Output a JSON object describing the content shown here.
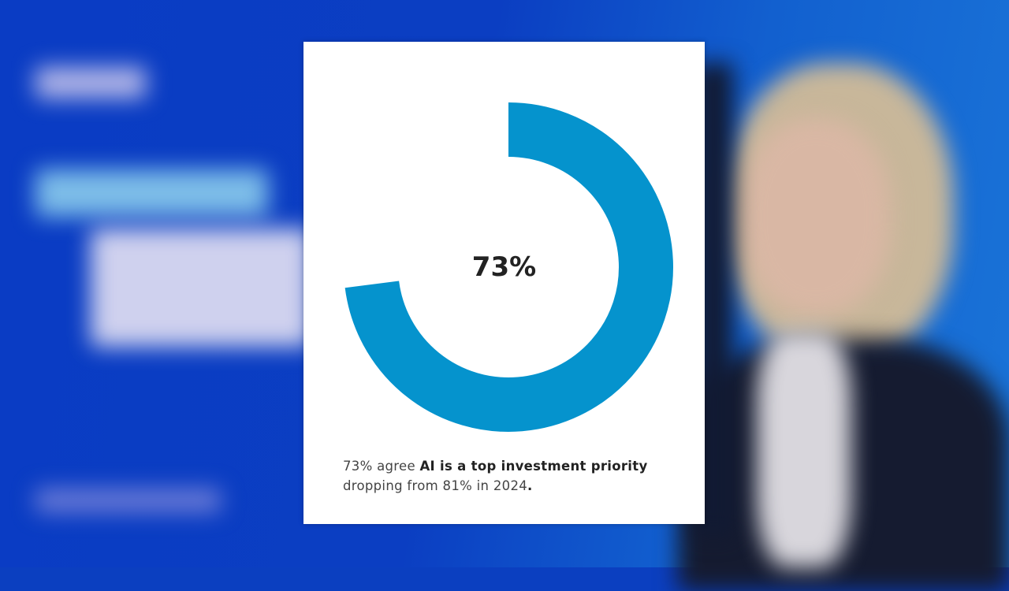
{
  "chart_data": {
    "type": "pie",
    "variant": "donut",
    "values": [
      73
    ],
    "max": 100,
    "center_label": "73%",
    "color": "#0593cd",
    "caption": {
      "prefix": "73% agree ",
      "bold": "AI is a top investment priority",
      "line2": "dropping from 81% in 2024",
      "end": "."
    }
  }
}
